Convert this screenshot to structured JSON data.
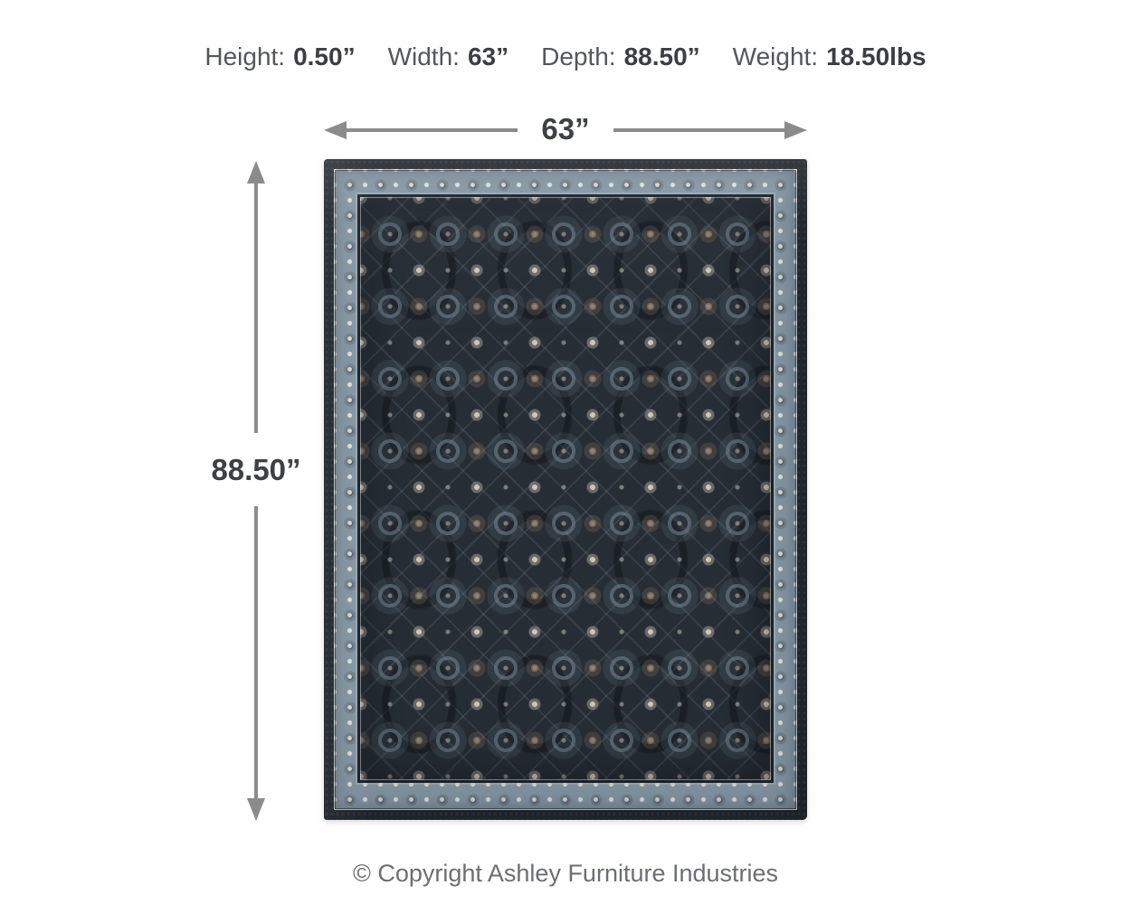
{
  "header": {
    "specs": [
      {
        "label": "Height:",
        "value": "0.50”"
      },
      {
        "label": "Width:",
        "value": "63”"
      },
      {
        "label": "Depth:",
        "value": "88.50”"
      },
      {
        "label": "Weight:",
        "value": "18.50lbs"
      }
    ]
  },
  "dimension_arrows": {
    "width_label": "63”",
    "depth_label": "88.50”",
    "arrow_color": "#8b8b8e"
  },
  "product": {
    "type": "area-rug-photo",
    "description": "Dark charcoal-blue oriental style area rug with all-over floral medallion pattern and light slate-blue ornamental border",
    "colors": {
      "edge": "#20262d",
      "border_band": "#8496a3",
      "field": "#272d35",
      "motif_cream": "#d8d0c0",
      "motif_tan": "#9e846a",
      "motif_slate": "#7c92a0"
    }
  },
  "footer": {
    "copyright": "© Copyright Ashley Furniture Industries"
  },
  "text_colors": {
    "spec_label": "#54565a",
    "spec_value": "#3d3e42",
    "dimension_label": "#3f4044",
    "copyright": "#6d6e71"
  }
}
